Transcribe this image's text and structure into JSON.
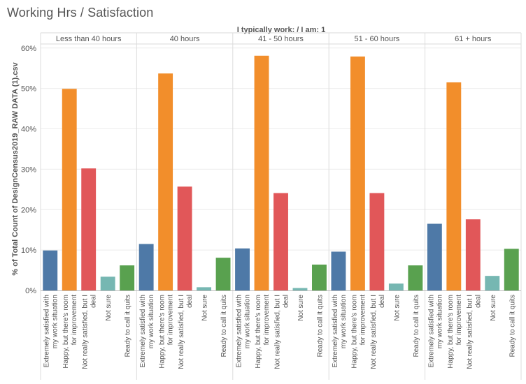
{
  "title": "Working Hrs / Satisfaction",
  "chart_data": {
    "type": "bar",
    "header_label": "I typically work:  /  I am: 1",
    "ylabel": "% of Total Count of DesignCensus2019_RAW DATA (1).csv",
    "ylim": [
      0,
      61
    ],
    "yticks": [
      "0%",
      "10%",
      "20%",
      "30%",
      "40%",
      "50%",
      "60%"
    ],
    "yticks_values": [
      0,
      10,
      20,
      30,
      40,
      50,
      60
    ],
    "categories": [
      {
        "line1": "Extremely satisfied with",
        "line2": "my work situation",
        "color": "#4e79a7"
      },
      {
        "line1": "Happy, but there's room",
        "line2": "for improvement",
        "color": "#f28e2b"
      },
      {
        "line1": "Not really satisfied, but I",
        "line2": "deal",
        "color": "#e15759"
      },
      {
        "line1": "Not sure",
        "line2": "",
        "color": "#76b7b2"
      },
      {
        "line1": "Ready to call it quits",
        "line2": "",
        "color": "#59a14f"
      }
    ],
    "groups": [
      {
        "name": "Less than 40 hours",
        "values": [
          9.9,
          49.9,
          30.2,
          3.4,
          6.2
        ]
      },
      {
        "name": "40 hours",
        "values": [
          11.5,
          53.7,
          25.7,
          0.8,
          8.1
        ]
      },
      {
        "name": "41 - 50 hours",
        "values": [
          10.4,
          58.1,
          24.1,
          0.6,
          6.4
        ]
      },
      {
        "name": "51 - 60 hours",
        "values": [
          9.6,
          57.9,
          24.1,
          1.7,
          6.2
        ]
      },
      {
        "name": "61 + hours",
        "values": [
          16.5,
          51.5,
          17.6,
          3.6,
          10.3
        ]
      }
    ],
    "grid": true
  }
}
